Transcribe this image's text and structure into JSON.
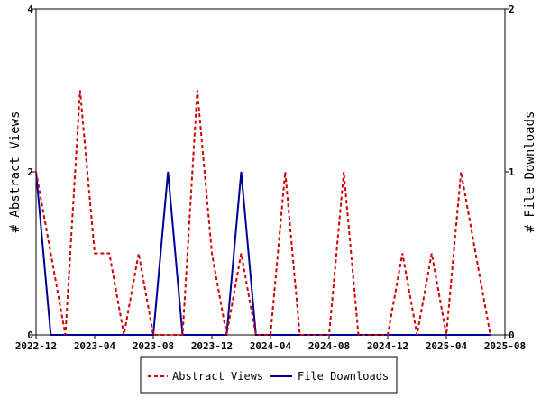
{
  "chart_data": {
    "type": "line",
    "x_ticks": [
      "2022-12",
      "2023-04",
      "2023-08",
      "2023-12",
      "2024-04",
      "2024-08",
      "2024-12",
      "2025-04",
      "2025-08"
    ],
    "x_range": [
      "2022-12",
      "2025-08"
    ],
    "y_left": {
      "label": "# Abstract Views",
      "range": [
        0,
        4
      ],
      "ticks": [
        "0",
        "2",
        "4"
      ]
    },
    "y_right": {
      "label": "# File Downloads",
      "range": [
        0,
        2
      ],
      "ticks": [
        "0",
        "1",
        "2"
      ]
    },
    "grid": false,
    "legend_position": "bottom",
    "series": [
      {
        "name": "Abstract Views",
        "axis": "left",
        "color": "#cc0000",
        "style": "dashed",
        "x": [
          "2022-12",
          "2023-01",
          "2023-02",
          "2023-03",
          "2023-04",
          "2023-05",
          "2023-06",
          "2023-07",
          "2023-08",
          "2023-09",
          "2023-10",
          "2023-11",
          "2023-12",
          "2024-01",
          "2024-02",
          "2024-03",
          "2024-04",
          "2024-05",
          "2024-06",
          "2024-07",
          "2024-08",
          "2024-09",
          "2024-10",
          "2024-11",
          "2024-12",
          "2025-01",
          "2025-02",
          "2025-03",
          "2025-04",
          "2025-05",
          "2025-06",
          "2025-07"
        ],
        "values": [
          2,
          1,
          0,
          3,
          1,
          1,
          0,
          1,
          0,
          0,
          0,
          3,
          1,
          0,
          1,
          0,
          0,
          2,
          0,
          0,
          0,
          2,
          0,
          0,
          0,
          1,
          0,
          1,
          0,
          2,
          1,
          0
        ]
      },
      {
        "name": "File Downloads",
        "axis": "right",
        "color": "#000099",
        "style": "solid",
        "x": [
          "2022-12",
          "2023-01",
          "2023-02",
          "2023-03",
          "2023-04",
          "2023-05",
          "2023-06",
          "2023-07",
          "2023-08",
          "2023-09",
          "2023-10",
          "2023-11",
          "2023-12",
          "2024-01",
          "2024-02",
          "2024-03",
          "2024-04",
          "2024-05",
          "2024-06",
          "2024-07",
          "2024-08",
          "2024-09",
          "2024-10",
          "2024-11",
          "2024-12",
          "2025-01",
          "2025-02",
          "2025-03",
          "2025-04",
          "2025-05",
          "2025-06",
          "2025-07"
        ],
        "values": [
          1,
          0,
          0,
          0,
          0,
          0,
          0,
          0,
          0,
          1,
          0,
          0,
          0,
          0,
          1,
          0,
          0,
          0,
          0,
          0,
          0,
          0,
          0,
          0,
          0,
          0,
          0,
          0,
          0,
          0,
          0,
          0
        ]
      }
    ]
  }
}
